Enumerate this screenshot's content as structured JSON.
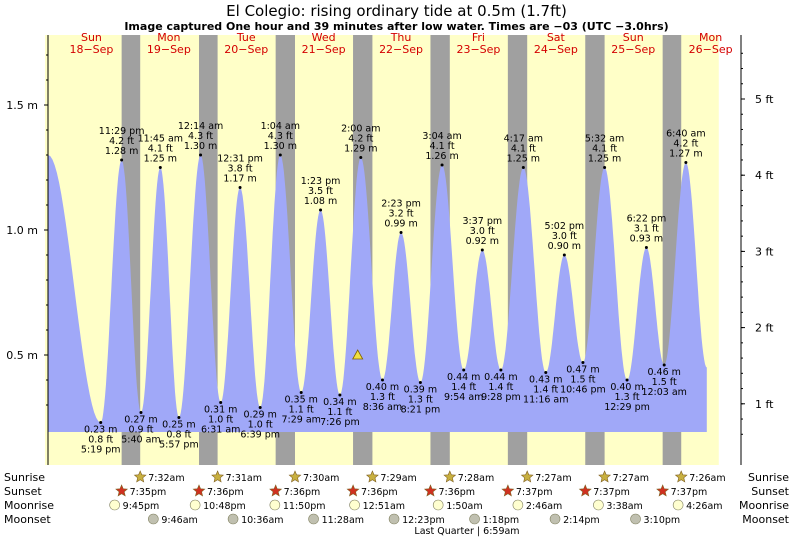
{
  "title": "El Colegio: rising  ordinary tide at 0.5m (1.7ft)",
  "subtitle": "Image captured One hour and 39 minutes after low water. Times are −03 (UTC −3.0hrs)",
  "colors": {
    "day_band": "#ffffc8",
    "night_band": "#a0a0a0",
    "tide_fill": "#a0a8f8",
    "day_label": "#d40000",
    "sun_star": "#c8b040",
    "sunset_star": "#d03020",
    "moon": "#ffffd0",
    "moon_dark": "#c0c0b0"
  },
  "days": [
    {
      "dow": "Sun",
      "date": "18−Sep"
    },
    {
      "dow": "Mon",
      "date": "19−Sep"
    },
    {
      "dow": "Tue",
      "date": "20−Sep"
    },
    {
      "dow": "Wed",
      "date": "21−Sep"
    },
    {
      "dow": "Thu",
      "date": "22−Sep"
    },
    {
      "dow": "Fri",
      "date": "23−Sep"
    },
    {
      "dow": "Sat",
      "date": "24−Sep"
    },
    {
      "dow": "Sun",
      "date": "25−Sep"
    },
    {
      "dow": "Mon",
      "date": "26−Sep"
    }
  ],
  "chart_data": {
    "type": "area",
    "title": "El Colegio: rising  ordinary tide at 0.5m (1.7ft)",
    "ylabel_left": "m",
    "ylabel_right": "ft",
    "left_ticks": [
      "0.5 m",
      "1.0 m",
      "1.5 m"
    ],
    "left_tick_values": [
      0.5,
      1.0,
      1.5
    ],
    "right_ticks": [
      "1 ft",
      "2 ft",
      "3 ft",
      "4 ft",
      "5 ft"
    ],
    "right_tick_values": [
      1,
      2,
      3,
      4,
      5
    ],
    "ylim_m": [
      0.15,
      1.78
    ],
    "x_day_start": 0,
    "x_day_end": 8.55,
    "current_marker": {
      "day": 4.04,
      "height_m": 0.5
    },
    "series": [
      {
        "kind": "start",
        "day": 0.04,
        "time": "",
        "height_ft": "",
        "height_m": 1.3
      },
      {
        "kind": "low",
        "day": 0.72,
        "time": "5:19 pm",
        "height_ft": "0.8 ft",
        "height_m": 0.23
      },
      {
        "kind": "high",
        "day": 0.99,
        "time": "11:29 pm",
        "height_ft": "4.2 ft",
        "height_m": 1.28
      },
      {
        "kind": "low",
        "day": 1.24,
        "time": "5:40 am",
        "height_ft": "0.9 ft",
        "height_m": 0.27
      },
      {
        "kind": "high",
        "day": 1.49,
        "time": "11:45 am",
        "height_ft": "4.1 ft",
        "height_m": 1.25
      },
      {
        "kind": "low",
        "day": 1.73,
        "time": "5:57 pm",
        "height_ft": "0.8 ft",
        "height_m": 0.25
      },
      {
        "kind": "high",
        "day": 2.01,
        "time": "12:14 am",
        "height_ft": "4.3 ft",
        "height_m": 1.3
      },
      {
        "kind": "low",
        "day": 2.27,
        "time": "6:31 am",
        "height_ft": "1.0 ft",
        "height_m": 0.31
      },
      {
        "kind": "high",
        "day": 2.52,
        "time": "12:31 pm",
        "height_ft": "3.8 ft",
        "height_m": 1.17
      },
      {
        "kind": "low",
        "day": 2.78,
        "time": "6:39 pm",
        "height_ft": "1.0 ft",
        "height_m": 0.29
      },
      {
        "kind": "high",
        "day": 3.04,
        "time": "1:04 am",
        "height_ft": "4.3 ft",
        "height_m": 1.3
      },
      {
        "kind": "low",
        "day": 3.31,
        "time": "7:29 am",
        "height_ft": "1.1 ft",
        "height_m": 0.35
      },
      {
        "kind": "high",
        "day": 3.56,
        "time": "1:23 pm",
        "height_ft": "3.5 ft",
        "height_m": 1.08
      },
      {
        "kind": "low",
        "day": 3.81,
        "time": "7:26 pm",
        "height_ft": "1.1 ft",
        "height_m": 0.34
      },
      {
        "kind": "high",
        "day": 4.08,
        "time": "2:00 am",
        "height_ft": "4.2 ft",
        "height_m": 1.29
      },
      {
        "kind": "low",
        "day": 4.36,
        "time": "8:36 am",
        "height_ft": "1.3 ft",
        "height_m": 0.4
      },
      {
        "kind": "high",
        "day": 4.6,
        "time": "2:23 pm",
        "height_ft": "3.2 ft",
        "height_m": 0.99
      },
      {
        "kind": "low",
        "day": 4.85,
        "time": "8:21 pm",
        "height_ft": "1.3 ft",
        "height_m": 0.39
      },
      {
        "kind": "high",
        "day": 5.13,
        "time": "3:04 am",
        "height_ft": "4.1 ft",
        "height_m": 1.26
      },
      {
        "kind": "low",
        "day": 5.41,
        "time": "9:54 am",
        "height_ft": "1.4 ft",
        "height_m": 0.44
      },
      {
        "kind": "high",
        "day": 5.65,
        "time": "3:37 pm",
        "height_ft": "3.0 ft",
        "height_m": 0.92
      },
      {
        "kind": "low",
        "day": 5.89,
        "time": "9:28 pm",
        "height_ft": "1.4 ft",
        "height_m": 0.44
      },
      {
        "kind": "high",
        "day": 6.18,
        "time": "4:17 am",
        "height_ft": "4.1 ft",
        "height_m": 1.25
      },
      {
        "kind": "low",
        "day": 6.47,
        "time": "11:16 am",
        "height_ft": "1.4 ft",
        "height_m": 0.43
      },
      {
        "kind": "high",
        "day": 6.71,
        "time": "5:02 pm",
        "height_ft": "3.0 ft",
        "height_m": 0.9
      },
      {
        "kind": "low",
        "day": 6.95,
        "time": "10:46 pm",
        "height_ft": "1.5 ft",
        "height_m": 0.47
      },
      {
        "kind": "high",
        "day": 7.23,
        "time": "5:32 am",
        "height_ft": "4.1 ft",
        "height_m": 1.25
      },
      {
        "kind": "low",
        "day": 7.52,
        "time": "12:29 pm",
        "height_ft": "1.3 ft",
        "height_m": 0.4
      },
      {
        "kind": "high",
        "day": 7.77,
        "time": "6:22 pm",
        "height_ft": "3.1 ft",
        "height_m": 0.93
      },
      {
        "kind": "low",
        "day": 8.0,
        "time": "12:03 am",
        "height_ft": "1.5 ft",
        "height_m": 0.46
      },
      {
        "kind": "high",
        "day": 8.28,
        "time": "6:40 am",
        "height_ft": "4.2 ft",
        "height_m": 1.27
      },
      {
        "kind": "end",
        "day": 8.55,
        "time": "",
        "height_ft": "",
        "height_m": 0.45
      }
    ],
    "night_bands": [
      [
        0.99,
        1.23
      ],
      [
        1.99,
        2.23
      ],
      [
        2.98,
        3.23
      ],
      [
        3.98,
        4.23
      ],
      [
        4.98,
        5.23
      ],
      [
        5.98,
        6.23
      ],
      [
        6.98,
        7.23
      ],
      [
        7.98,
        8.22
      ]
    ]
  },
  "rows": {
    "sunrise": {
      "label": "Sunrise",
      "items": [
        {
          "day": 1.23,
          "time": "7:32am"
        },
        {
          "day": 2.23,
          "time": "7:31am"
        },
        {
          "day": 3.23,
          "time": "7:30am"
        },
        {
          "day": 4.23,
          "time": "7:29am"
        },
        {
          "day": 5.23,
          "time": "7:28am"
        },
        {
          "day": 6.23,
          "time": "7:27am"
        },
        {
          "day": 7.23,
          "time": "7:27am"
        },
        {
          "day": 8.22,
          "time": "7:26am"
        }
      ]
    },
    "sunset": {
      "label": "Sunset",
      "items": [
        {
          "day": 0.99,
          "time": "7:35pm"
        },
        {
          "day": 1.99,
          "time": "7:36pm"
        },
        {
          "day": 2.98,
          "time": "7:36pm"
        },
        {
          "day": 3.98,
          "time": "7:36pm"
        },
        {
          "day": 4.98,
          "time": "7:36pm"
        },
        {
          "day": 5.98,
          "time": "7:37pm"
        },
        {
          "day": 6.98,
          "time": "7:37pm"
        },
        {
          "day": 7.98,
          "time": "7:37pm"
        }
      ]
    },
    "moonrise": {
      "label": "Moonrise",
      "items": [
        {
          "day": 0.9,
          "time": "9:45pm"
        },
        {
          "day": 1.94,
          "time": "10:48pm"
        },
        {
          "day": 2.97,
          "time": "11:50pm"
        },
        {
          "day": 4.0,
          "time": "12:51am"
        },
        {
          "day": 5.08,
          "time": "1:50am"
        },
        {
          "day": 6.11,
          "time": "2:46am"
        },
        {
          "day": 7.15,
          "time": "3:38am"
        },
        {
          "day": 8.18,
          "time": "4:26am"
        }
      ]
    },
    "moonset": {
      "label": "Moonset",
      "items": [
        {
          "day": 1.4,
          "time": "9:46am"
        },
        {
          "day": 2.43,
          "time": "10:36am"
        },
        {
          "day": 3.47,
          "time": "11:28am"
        },
        {
          "day": 4.51,
          "time": "12:23pm"
        },
        {
          "day": 5.55,
          "time": "1:18pm"
        },
        {
          "day": 6.59,
          "time": "2:14pm"
        },
        {
          "day": 7.63,
          "time": "3:10pm"
        }
      ]
    }
  },
  "moon_phase": "Last Quarter | 6:59am"
}
